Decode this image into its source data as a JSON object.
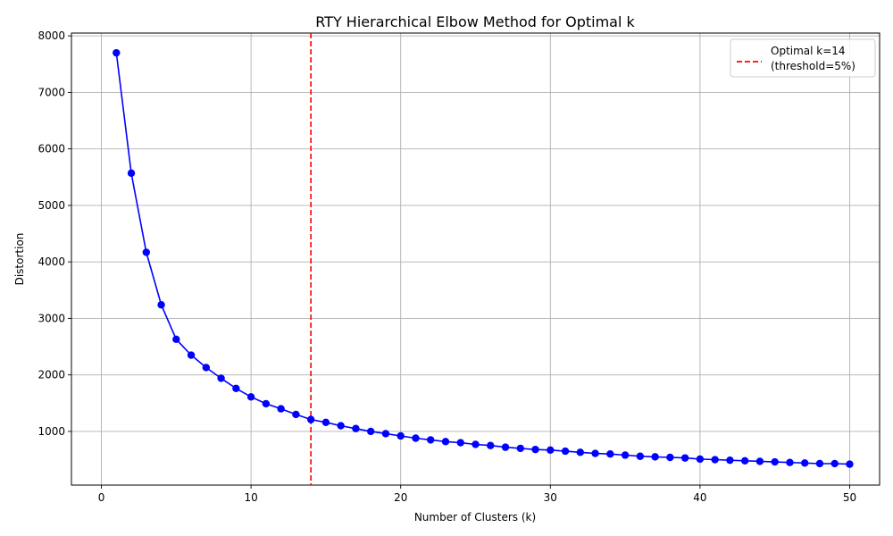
{
  "chart_data": {
    "type": "line",
    "title": "RTY Hierarchical Elbow Method for Optimal k",
    "xlabel": "Number of Clusters (k)",
    "ylabel": "Distortion",
    "xlim": [
      -2,
      52
    ],
    "ylim": [
      50,
      8050
    ],
    "xticks": [
      0,
      10,
      20,
      30,
      40,
      50
    ],
    "yticks": [
      1000,
      2000,
      3000,
      4000,
      5000,
      6000,
      7000,
      8000
    ],
    "grid": true,
    "legend_position": "top-right",
    "colors": {
      "series": "#0000ff",
      "marker": "#0000ff",
      "optimal_line": "#ff0000",
      "grid": "#b0b0b0"
    },
    "series": [
      {
        "x": [
          1,
          2,
          3,
          4,
          5,
          6,
          7,
          8,
          9,
          10,
          11,
          12,
          13,
          14,
          15,
          16,
          17,
          18,
          19,
          20,
          21,
          22,
          23,
          24,
          25,
          26,
          27,
          28,
          29,
          30,
          31,
          32,
          33,
          34,
          35,
          36,
          37,
          38,
          39,
          40,
          41,
          42,
          43,
          44,
          45,
          46,
          47,
          48,
          49,
          50
        ],
        "values": [
          7700,
          5570,
          4170,
          3240,
          2630,
          2350,
          2130,
          1940,
          1760,
          1610,
          1490,
          1400,
          1300,
          1210,
          1160,
          1100,
          1050,
          1000,
          960,
          920,
          880,
          850,
          820,
          800,
          770,
          750,
          720,
          700,
          680,
          670,
          650,
          630,
          610,
          600,
          580,
          560,
          550,
          540,
          530,
          510,
          500,
          490,
          480,
          470,
          460,
          450,
          440,
          430,
          430,
          420
        ]
      }
    ],
    "annotations": [
      {
        "type": "vline",
        "x": 14,
        "style": "dashed",
        "label_line1": "Optimal k=14",
        "label_line2": "(threshold=5%)"
      }
    ]
  }
}
